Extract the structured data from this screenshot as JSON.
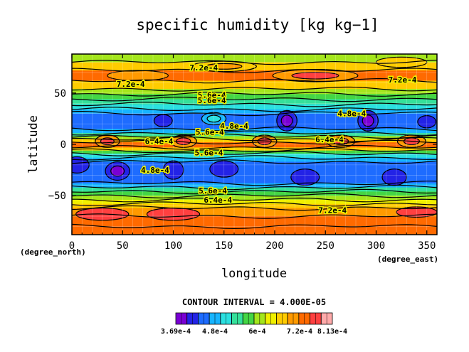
{
  "chart_data": {
    "type": "heatmap",
    "title": "specific humidity [kg kg−1]",
    "xlabel": "longitude",
    "ylabel": "latitude",
    "x_unit": "(degree_east)",
    "y_unit": "(degree_north)",
    "xlim": [
      0,
      360
    ],
    "ylim": [
      -88,
      88
    ],
    "x_ticks": [
      "0",
      "50",
      "100",
      "150",
      "200",
      "250",
      "300",
      "350"
    ],
    "y_ticks": [
      "50",
      "0",
      "−50"
    ],
    "x_tick_values": [
      0,
      50,
      100,
      150,
      200,
      250,
      300,
      350
    ],
    "y_tick_values": [
      50,
      0,
      -50
    ],
    "grid": true,
    "contour_interval_label": "CONTOUR INTERVAL = 4.000E-05",
    "colorbar": {
      "min": 0.000369,
      "max": 0.000813,
      "interval": 4e-05,
      "labels": [
        "3.69e-4",
        "4.8e-4",
        "6e-4",
        "7.2e-4",
        "8.13e-4"
      ],
      "label_values": [
        0.000369,
        0.00048,
        0.0006,
        0.00072,
        0.000813
      ],
      "colors": [
        "#7a00d4",
        "#2323e6",
        "#1e6cff",
        "#17b4ff",
        "#2be0e0",
        "#35e09a",
        "#44d644",
        "#a4e61c",
        "#f0f000",
        "#ffcc00",
        "#ff9a00",
        "#ff6a00",
        "#ff4040",
        "#ffaaaa"
      ]
    },
    "contour_labels": [
      {
        "text": "7.2e-4",
        "lon": 130,
        "lat": 75
      },
      {
        "text": "7.2e-4",
        "lon": 58,
        "lat": 59
      },
      {
        "text": "7.2e-4",
        "lon": 326,
        "lat": 63
      },
      {
        "text": "5.6e-4",
        "lon": 138,
        "lat": 48
      },
      {
        "text": "5.6e-4",
        "lon": 138,
        "lat": 43
      },
      {
        "text": "4.8e-4",
        "lon": 276,
        "lat": 30
      },
      {
        "text": "4.8e-4",
        "lon": 160,
        "lat": 18
      },
      {
        "text": "5.6e-4",
        "lon": 136,
        "lat": 12
      },
      {
        "text": "6.4e-4",
        "lon": 86,
        "lat": 3
      },
      {
        "text": "6.4e-4",
        "lon": 254,
        "lat": 5
      },
      {
        "text": "5.6e-4",
        "lon": 135,
        "lat": -8
      },
      {
        "text": "4.8e-4",
        "lon": 82,
        "lat": -25
      },
      {
        "text": "5.6e-4",
        "lon": 139,
        "lat": -45
      },
      {
        "text": "6.4e-4",
        "lon": 144,
        "lat": -54
      },
      {
        "text": "7.2e-4",
        "lon": 257,
        "lat": -64
      }
    ]
  }
}
